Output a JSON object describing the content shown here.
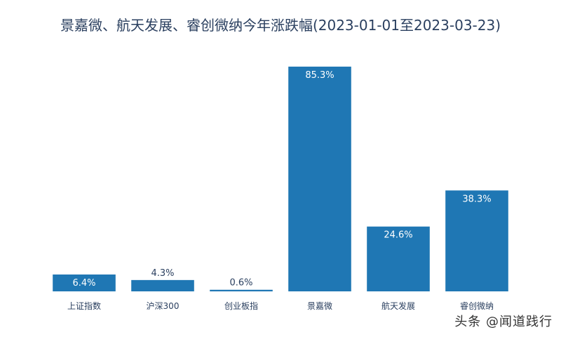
{
  "chart_data": {
    "type": "bar",
    "title": "景嘉微、航天发展、睿创微纳今年涨跌幅(2023-01-01至2023-03-23)",
    "categories": [
      "上证指数",
      "沪深300",
      "创业板指",
      "景嘉微",
      "航天发展",
      "睿创微纳"
    ],
    "values": [
      6.4,
      4.3,
      0.6,
      85.3,
      24.6,
      38.3
    ],
    "value_labels": [
      "6.4%",
      "4.3%",
      "0.6%",
      "85.3%",
      "24.6%",
      "38.3%"
    ],
    "ylim": [
      0,
      89.8
    ],
    "xlabel": "",
    "ylabel": "",
    "grid": false,
    "colors": {
      "bar": "#1f77b4",
      "inside_label": "#ffffff",
      "outside_label": "#2a3f5f",
      "title": "#2a3f5f"
    }
  },
  "watermark": "头条 @闻道践行"
}
